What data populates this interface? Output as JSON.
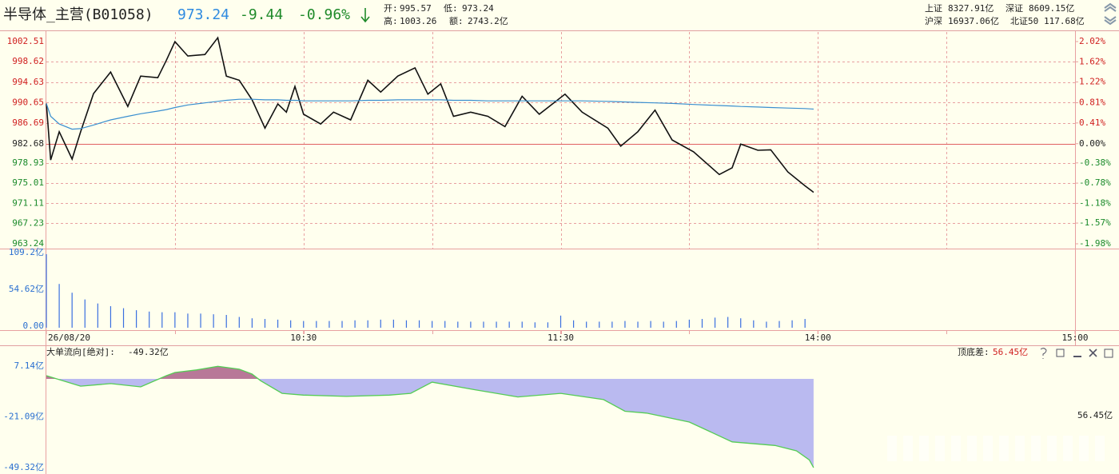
{
  "header": {
    "title": "半导体_主营(B01058)",
    "price": "973.24",
    "change": "-9.44",
    "change_pct": "-0.96%",
    "open_label": "开:",
    "open": "995.57",
    "low_label": "低:",
    "low": "973.24",
    "high_label": "高:",
    "high": "1003.26",
    "amount_label": "额:",
    "amount": "2743.2亿",
    "markets": [
      {
        "name": "上证",
        "value": "8327.91亿"
      },
      {
        "name": "深证",
        "value": "8609.15亿"
      },
      {
        "name": "沪深",
        "value": "16937.06亿"
      },
      {
        "name": "北证50",
        "value": "117.68亿"
      }
    ]
  },
  "chart_data": [
    {
      "type": "line",
      "ref_line": 982.68,
      "x": [
        0,
        1,
        3,
        6,
        8,
        11,
        15,
        19,
        22,
        26,
        28,
        30,
        33,
        37,
        40,
        42,
        45,
        48,
        51,
        54,
        56,
        58,
        60,
        64,
        67,
        71,
        75,
        78,
        82,
        86,
        89,
        92,
        95,
        99,
        103,
        107,
        111,
        115,
        121,
        125,
        131,
        134,
        138,
        142,
        146,
        151,
        157,
        160,
        162,
        166,
        169,
        173,
        177,
        179
      ],
      "series": [
        {
          "color": "#111111",
          "values": [
            990.5,
            979.5,
            985.0,
            979.7,
            985.0,
            992.4,
            996.6,
            989.9,
            995.8,
            995.5,
            998.9,
            1002.5,
            999.7,
            1000.0,
            1003.26,
            995.8,
            995.0,
            991.2,
            985.7,
            990.4,
            988.8,
            993.8,
            988.4,
            986.5,
            988.8,
            987.3,
            995.0,
            992.7,
            995.8,
            997.4,
            992.3,
            994.3,
            988.0,
            988.8,
            988.0,
            986.0,
            991.9,
            988.4,
            992.3,
            988.8,
            985.7,
            982.2,
            985.0,
            989.2,
            983.4,
            981.1,
            976.7,
            978.0,
            982.6,
            981.4,
            981.5,
            977.2,
            974.5,
            973.24
          ]
        },
        {
          "color": "#3a8fd0",
          "values": [
            990.5,
            988,
            986.5,
            985.5,
            985.6,
            986.3,
            987.3,
            988.0,
            988.5,
            989.0,
            989.3,
            989.7,
            990.2,
            990.6,
            990.9,
            991.1,
            991.3,
            991.3,
            991.2,
            991.2,
            991.1,
            991.1,
            991.0,
            991.0,
            991.0,
            991.0,
            991.1,
            991.1,
            991.2,
            991.2,
            991.2,
            991.2,
            991.1,
            991.1,
            991.0,
            991.0,
            991.0,
            991.0,
            991.0,
            991.0,
            990.9,
            990.8,
            990.7,
            990.6,
            990.5,
            990.3,
            990.1,
            990.0,
            989.9,
            989.8,
            989.7,
            989.6,
            989.5,
            989.4
          ]
        }
      ],
      "xlim": [
        0,
        240
      ],
      "xgrid": [
        30,
        60,
        90,
        120,
        150,
        180,
        210
      ],
      "ylim": [
        963.24,
        1002.51
      ],
      "yticks": [
        1002.51,
        998.62,
        994.63,
        990.65,
        986.69,
        982.68,
        978.93,
        975.01,
        971.11,
        967.23,
        963.24
      ],
      "y2lim": [
        -1.98,
        2.02
      ],
      "y2ticks": [
        {
          "value": 2.02,
          "label": "2.02%"
        },
        {
          "value": 1.62,
          "label": "1.62%"
        },
        {
          "value": 1.22,
          "label": "1.22%"
        },
        {
          "value": 0.81,
          "label": "0.81%"
        },
        {
          "value": 0.41,
          "label": "0.41%"
        },
        {
          "value": 0.0,
          "label": "0.00%"
        },
        {
          "value": -0.38,
          "label": "-0.38%"
        },
        {
          "value": -0.78,
          "label": "-0.78%"
        },
        {
          "value": -1.18,
          "label": "-1.18%"
        },
        {
          "value": -1.57,
          "label": "-1.57%"
        },
        {
          "value": -1.98,
          "label": "-1.98%"
        }
      ],
      "grid": true
    },
    {
      "type": "bar",
      "color": "#3a6fe0",
      "x": [
        0,
        3,
        6,
        9,
        12,
        15,
        18,
        21,
        24,
        27,
        30,
        33,
        36,
        39,
        42,
        45,
        48,
        51,
        54,
        57,
        60,
        63,
        66,
        69,
        72,
        75,
        78,
        81,
        84,
        87,
        90,
        93,
        96,
        99,
        102,
        105,
        108,
        111,
        114,
        117,
        120,
        123,
        126,
        129,
        132,
        135,
        138,
        141,
        144,
        147,
        150,
        153,
        156,
        159,
        162,
        165,
        168,
        171,
        174,
        177
      ],
      "values": [
        109.2,
        65,
        52,
        42,
        36,
        32,
        29,
        26,
        24,
        23,
        23,
        21,
        21,
        20,
        19,
        16,
        14,
        13,
        12,
        11,
        10,
        10,
        10,
        10,
        11,
        11,
        12,
        12,
        11,
        11,
        10,
        10,
        9,
        9,
        9,
        9,
        9,
        9,
        8,
        8,
        18,
        11,
        9,
        9,
        9,
        10,
        9,
        10,
        9,
        10,
        12,
        13,
        15,
        16,
        14,
        11,
        9,
        10,
        11,
        13
      ],
      "xlim": [
        0,
        240
      ],
      "ylim": [
        0,
        109.2
      ],
      "yticks": [
        {
          "value": 109.2,
          "label": "109.2亿"
        },
        {
          "value": 54.62,
          "label": "54.62亿"
        },
        {
          "value": 0,
          "label": "0.00"
        }
      ],
      "xticks": [
        {
          "value": 0,
          "label": "26/08/20"
        },
        {
          "value": 60,
          "label": "10:30"
        },
        {
          "value": 120,
          "label": "11:30"
        },
        {
          "value": 180,
          "label": "14:00"
        },
        {
          "value": 240,
          "label": "15:00"
        }
      ]
    },
    {
      "type": "area",
      "title": "大单流向[绝对]:",
      "current_label": "-49.32亿",
      "range_title": "顶底差:",
      "range_label": "56.45亿",
      "line_color": "#55cc55",
      "positive_color": "#b87898",
      "negative_color": "#babaf0",
      "x": [
        0,
        8,
        15,
        22,
        28,
        30,
        35,
        40,
        45,
        48,
        50,
        55,
        60,
        70,
        80,
        85,
        90,
        100,
        110,
        120,
        130,
        135,
        140,
        150,
        160,
        170,
        175,
        178,
        179
      ],
      "values": [
        1.8,
        -4,
        -2.6,
        -4.4,
        1.8,
        3.6,
        5,
        7.0,
        5.4,
        2.7,
        -1,
        -8,
        -9,
        -9.7,
        -9,
        -8,
        -1.8,
        -6,
        -10,
        -8,
        -11.5,
        -18,
        -19,
        -24,
        -35,
        -37,
        -40,
        -45,
        -49.32
      ],
      "xlim": [
        0,
        240
      ],
      "ylim": [
        -49.32,
        7.14
      ],
      "yticks": [
        {
          "value": 7.14,
          "label": "7.14亿"
        },
        {
          "value": -21.09,
          "label": "-21.09亿"
        },
        {
          "value": -49.32,
          "label": "-49.32亿"
        }
      ]
    }
  ]
}
